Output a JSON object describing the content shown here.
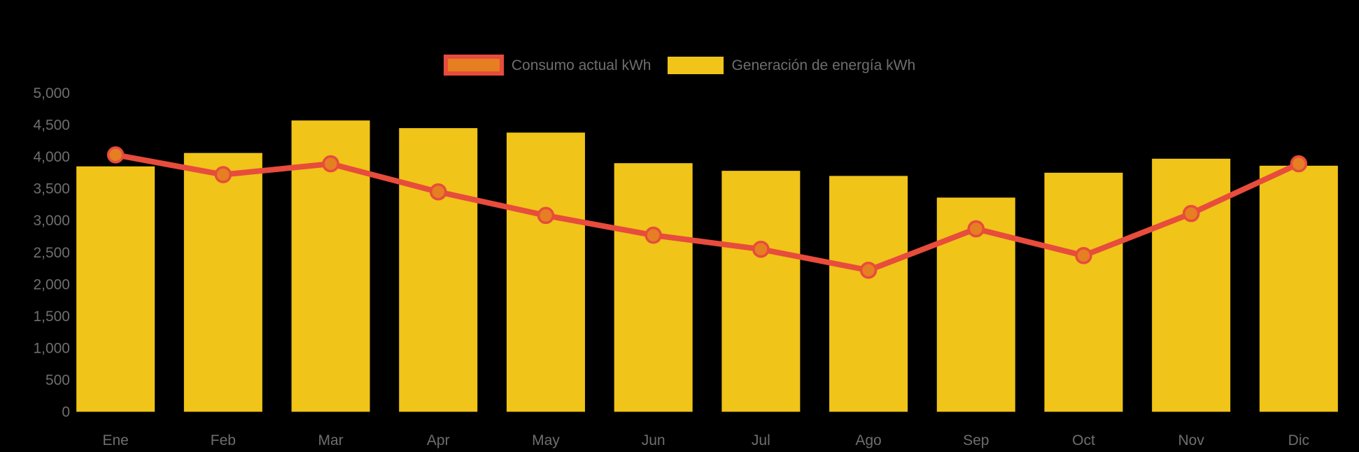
{
  "chart_data": {
    "type": "combo",
    "title": "",
    "categories": [
      "Ene",
      "Feb",
      "Mar",
      "Apr",
      "May",
      "Jun",
      "Jul",
      "Ago",
      "Sep",
      "Oct",
      "Nov",
      "Dic"
    ],
    "series": [
      {
        "name": "Consumo actual kWh",
        "type": "line",
        "color": "#E74C3C",
        "marker_color": "#E67E22",
        "values": [
          4030,
          3720,
          3890,
          3450,
          3080,
          2770,
          2550,
          2220,
          2870,
          2450,
          3110,
          3890
        ]
      },
      {
        "name": "Generación de energía kWh",
        "type": "bar",
        "color": "#F0C419",
        "values": [
          3850,
          4060,
          4570,
          4450,
          4380,
          3900,
          3780,
          3700,
          3360,
          3750,
          3970,
          3860
        ]
      }
    ],
    "xlabel": "",
    "ylabel": "",
    "ylim": [
      0,
      5000
    ],
    "ytick_step": 500,
    "ytick_labels": [
      "0",
      "500",
      "1,000",
      "1,500",
      "2,000",
      "2,500",
      "3,000",
      "3,500",
      "4,000",
      "4,500",
      "5,000"
    ],
    "grid": false,
    "legend_position": "top-center",
    "colors": {
      "background": "#000000",
      "axis_label": "#6E6E6E",
      "legend_text": "#6E6E6E"
    }
  }
}
